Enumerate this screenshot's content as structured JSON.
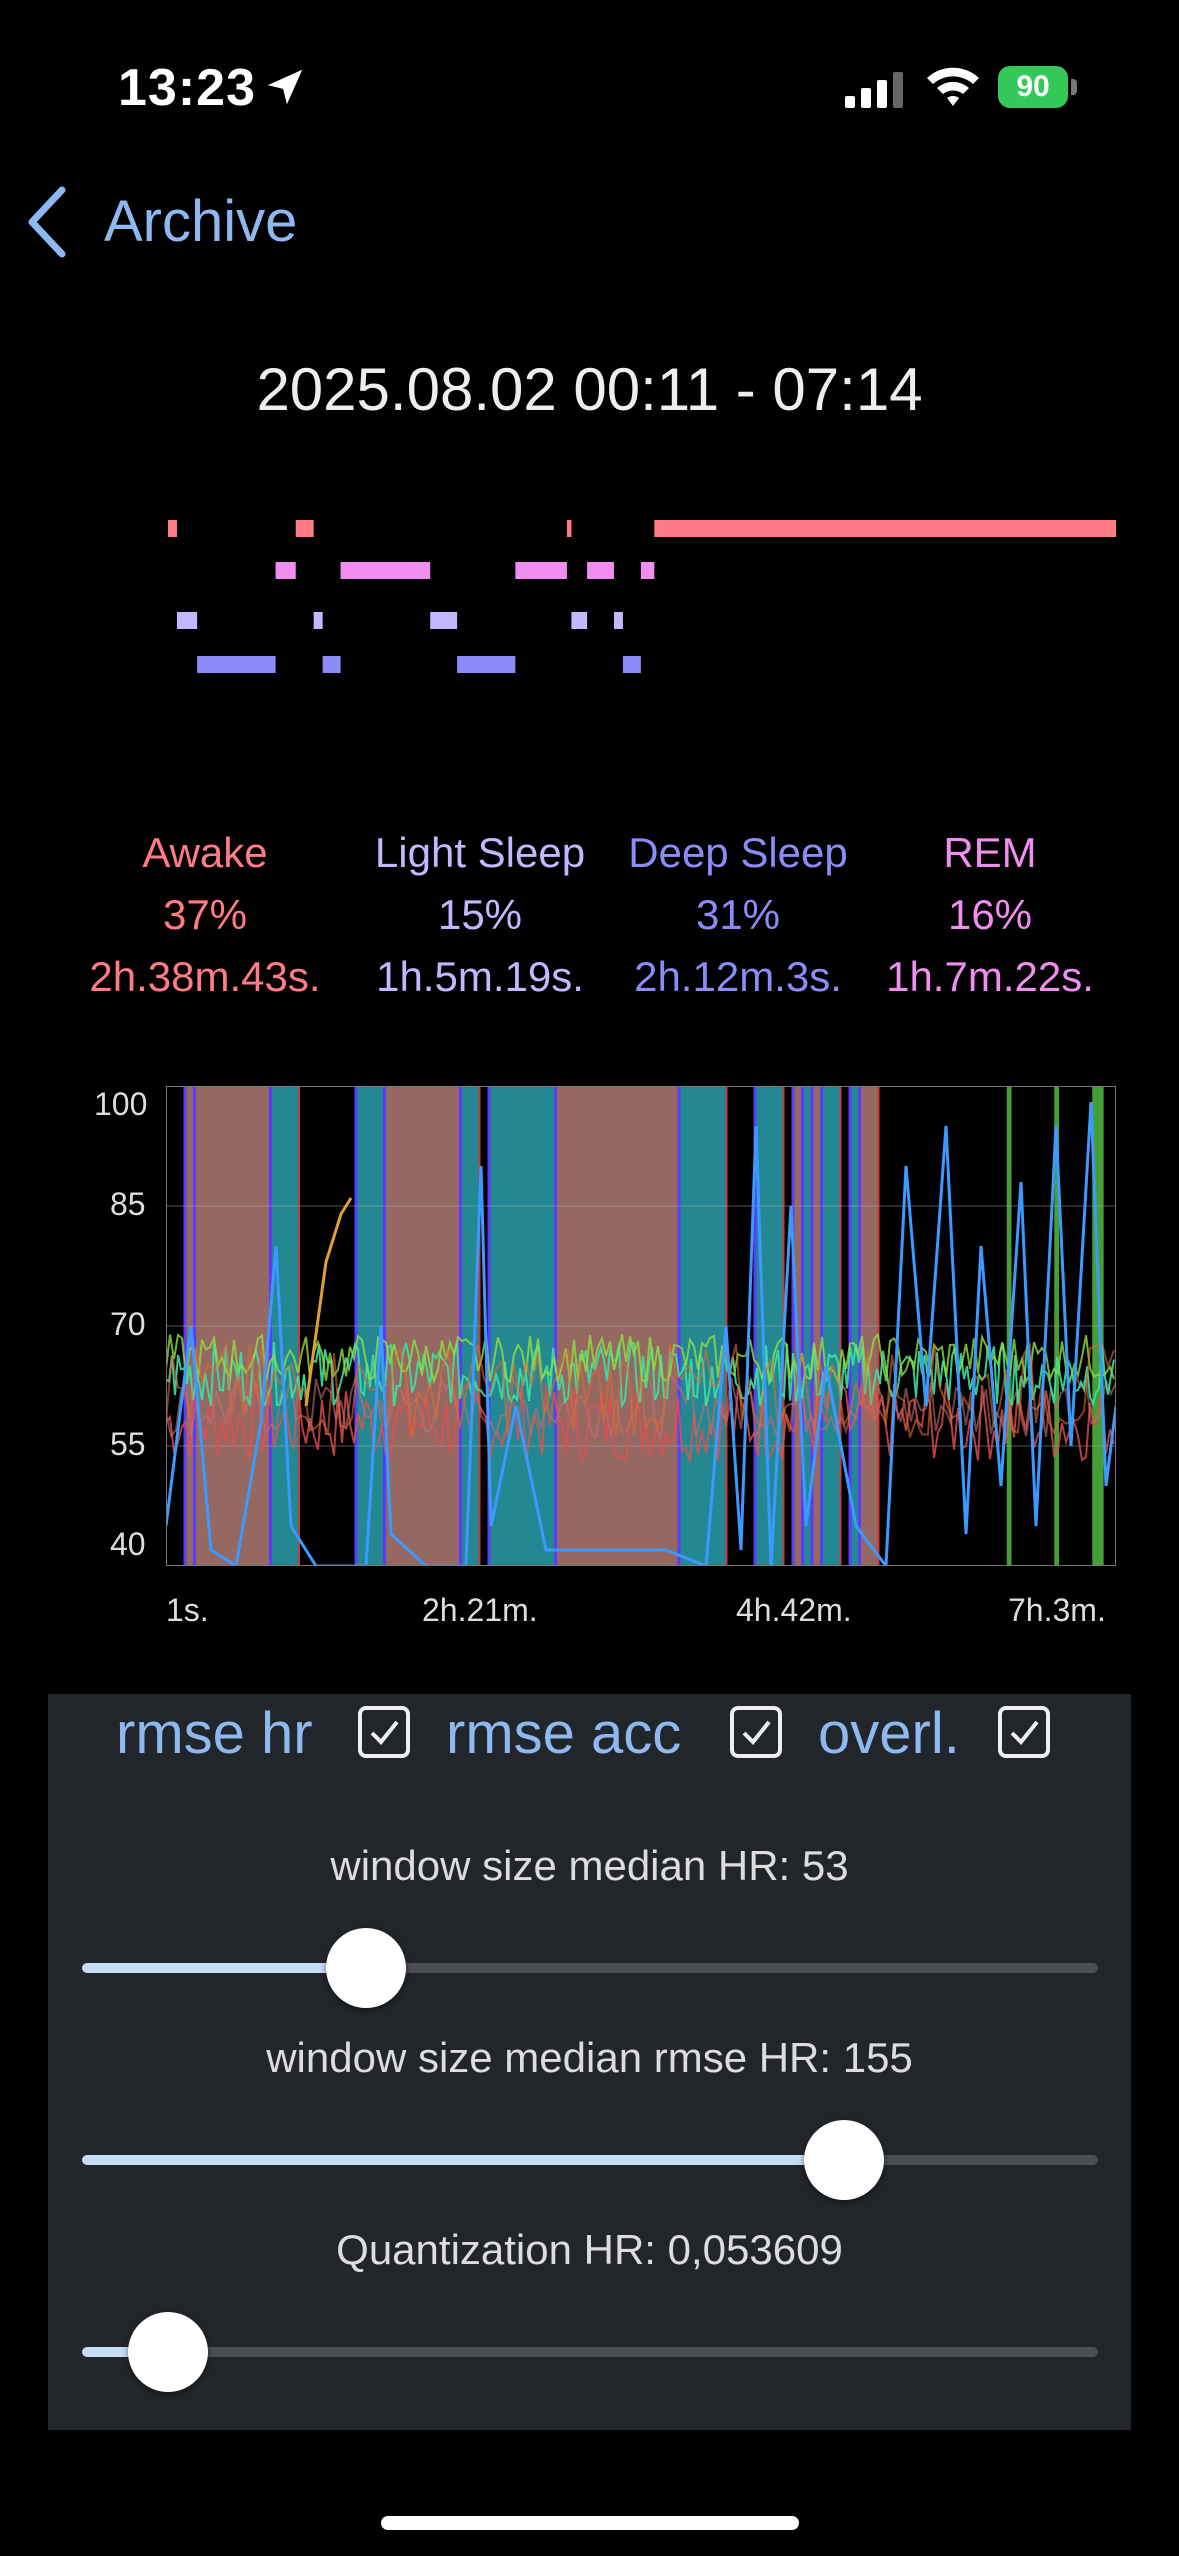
{
  "status": {
    "time": "13:23",
    "battery": "90"
  },
  "nav": {
    "back_label": "Archive"
  },
  "title": "2025.08.02 00:11 - 07:14",
  "colors": {
    "awake": "#ff7b86",
    "light": "#c2b8ff",
    "deep": "#8c8cf8",
    "rem": "#f08ef0",
    "accent": "#8db8f0"
  },
  "stages": [
    {
      "name": "Awake",
      "percent": "37%",
      "duration": "2h.38m.43s."
    },
    {
      "name": "Light Sleep",
      "percent": "15%",
      "duration": "1h.5m.19s."
    },
    {
      "name": "Deep Sleep",
      "percent": "31%",
      "duration": "2h.12m.3s."
    },
    {
      "name": "REM",
      "percent": "16%",
      "duration": "1h.7m.22s."
    }
  ],
  "chart_data": [
    {
      "type": "line",
      "title": "",
      "series": [
        {
          "name": "",
          "x_min": [
            0,
            4,
            13,
            48,
            57,
            65,
            69,
            77,
            117,
            129,
            155,
            178,
            180,
            187,
            199,
            203,
            211,
            217
          ],
          "stage": [
            "awake",
            "light",
            "deep",
            "rem",
            "awake",
            "light",
            "deep",
            "rem",
            "light",
            "deep",
            "rem",
            "awake",
            "light",
            "rem",
            "light",
            "deep",
            "rem",
            "awake"
          ]
        }
      ],
      "xlim": [
        0,
        423
      ]
    },
    {
      "type": "line",
      "title": "",
      "yticks": [
        100,
        85,
        70,
        55,
        40
      ],
      "ylim": [
        40,
        100
      ],
      "xticks": [
        "1s.",
        "2h.21m.",
        "4h.42m.",
        "7h.3m."
      ],
      "bands": [
        {
          "from": 0.02,
          "to": 0.03,
          "kind": "awake"
        },
        {
          "from": 0.03,
          "to": 0.11,
          "kind": "awake"
        },
        {
          "from": 0.11,
          "to": 0.14,
          "kind": "teal"
        },
        {
          "from": 0.2,
          "to": 0.23,
          "kind": "teal"
        },
        {
          "from": 0.23,
          "to": 0.31,
          "kind": "awake"
        },
        {
          "from": 0.31,
          "to": 0.33,
          "kind": "teal"
        },
        {
          "from": 0.34,
          "to": 0.41,
          "kind": "teal"
        },
        {
          "from": 0.41,
          "to": 0.54,
          "kind": "awake"
        },
        {
          "from": 0.54,
          "to": 0.59,
          "kind": "teal"
        },
        {
          "from": 0.62,
          "to": 0.65,
          "kind": "teal"
        },
        {
          "from": 0.66,
          "to": 0.67,
          "kind": "awake"
        },
        {
          "from": 0.67,
          "to": 0.68,
          "kind": "teal"
        },
        {
          "from": 0.68,
          "to": 0.69,
          "kind": "awake"
        },
        {
          "from": 0.69,
          "to": 0.71,
          "kind": "teal"
        },
        {
          "from": 0.72,
          "to": 0.73,
          "kind": "teal"
        },
        {
          "from": 0.73,
          "to": 0.75,
          "kind": "awake"
        }
      ]
    }
  ],
  "controls": {
    "checkboxes": [
      {
        "label": "rmse hr",
        "checked": true
      },
      {
        "label": "rmse acc",
        "checked": true
      },
      {
        "label": "overl.",
        "checked": true
      }
    ],
    "sliders": [
      {
        "label": "window size median HR: 53",
        "fraction": 0.28
      },
      {
        "label": "window size median rmse HR: 155",
        "fraction": 0.75
      },
      {
        "label": "Quantization HR: 0,053609",
        "fraction": 0.085
      }
    ]
  }
}
